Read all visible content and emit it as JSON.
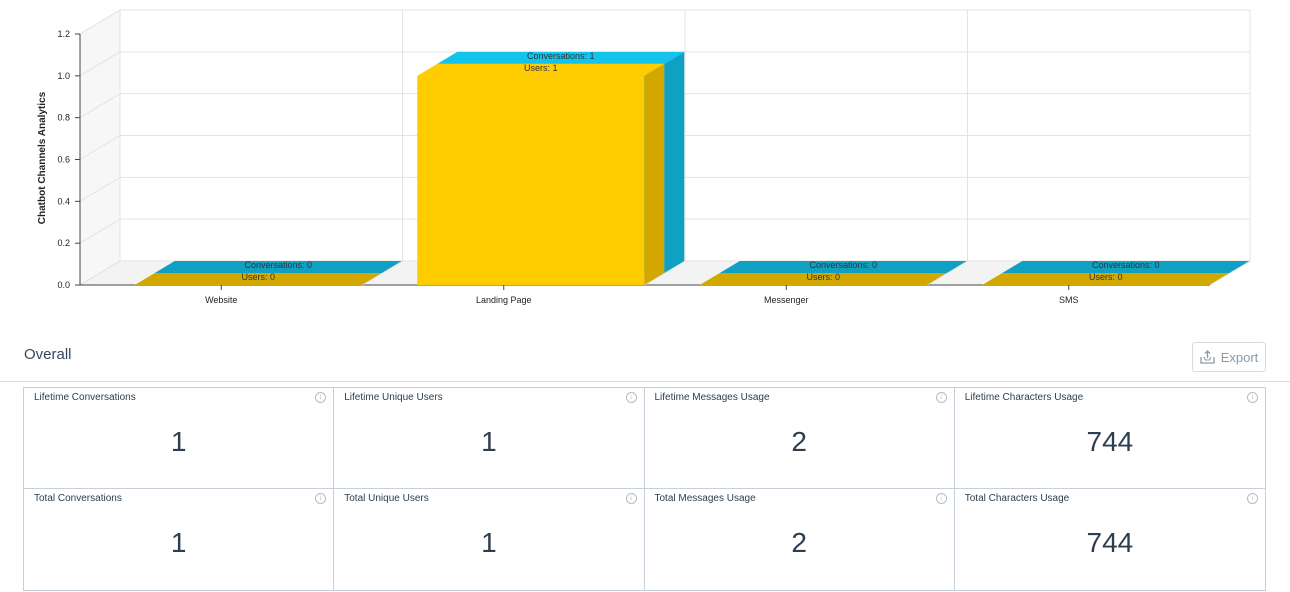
{
  "chart_data": {
    "type": "bar",
    "categories": [
      "Website",
      "Landing Page",
      "Messenger",
      "SMS"
    ],
    "series": [
      {
        "name": "Users",
        "values": [
          0,
          1,
          0,
          0
        ],
        "color": "#ffcc00"
      },
      {
        "name": "Conversations",
        "values": [
          0,
          1,
          0,
          0
        ],
        "color": "#14c3ec"
      }
    ],
    "ylabel": "Chatbot Channels Analytics",
    "yticks": [
      "0.0",
      "0.2",
      "0.4",
      "0.6",
      "0.8",
      "1.0",
      "1.2"
    ],
    "ylim": [
      0,
      1.2
    ],
    "grid": true,
    "style": "3d"
  },
  "overall": {
    "title": "Overall",
    "export_label": "Export"
  },
  "stats": [
    {
      "label": "Lifetime Conversations",
      "value": "1"
    },
    {
      "label": "Lifetime Unique Users",
      "value": "1"
    },
    {
      "label": "Lifetime Messages Usage",
      "value": "2"
    },
    {
      "label": "Lifetime Characters Usage",
      "value": "744"
    },
    {
      "label": "Total Conversations",
      "value": "1"
    },
    {
      "label": "Total Unique Users",
      "value": "1"
    },
    {
      "label": "Total Messages Usage",
      "value": "2"
    },
    {
      "label": "Total Characters Usage",
      "value": "744"
    }
  ]
}
